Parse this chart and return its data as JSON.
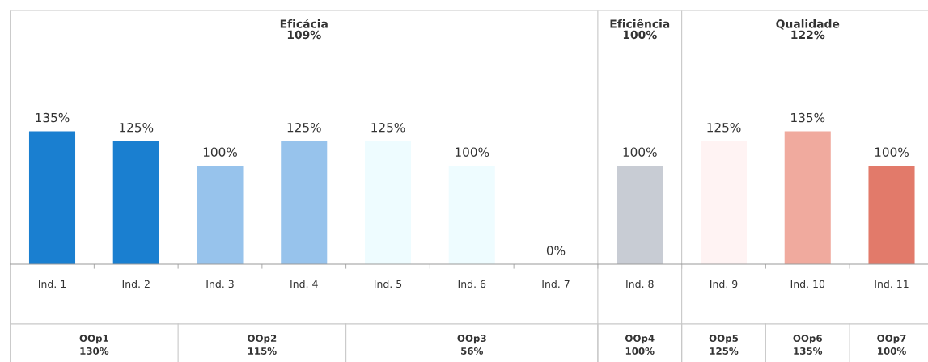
{
  "chart_data": {
    "type": "bar",
    "categories": [
      "Ind. 1",
      "Ind. 2",
      "Ind. 3",
      "Ind. 4",
      "Ind. 5",
      "Ind. 6",
      "Ind. 7",
      "Ind. 8",
      "Ind. 9",
      "Ind. 10",
      "Ind. 11"
    ],
    "values": [
      135,
      125,
      100,
      125,
      125,
      100,
      0,
      100,
      125,
      135,
      100
    ],
    "value_labels": [
      "135%",
      "125%",
      "100%",
      "125%",
      "125%",
      "100%",
      "0%",
      "100%",
      "125%",
      "135%",
      "100%"
    ],
    "colors": [
      "#1a7fd0",
      "#1a7fd0",
      "#97c3ec",
      "#97c3ec",
      "#eefcff",
      "#eefcff",
      "#eefcff",
      "#c8ccd4",
      "#fff3f3",
      "#f0aa9e",
      "#e27a6a"
    ],
    "annotations": [
      "Eficácia\n109%",
      "Eficiência\n100%",
      "Qualidade\n122%",
      "OOp1\n130%",
      "OOp2\n115%",
      "OOp3\n56%",
      "OOp4\n100%",
      "OOp5\n125%",
      "OOp6\n135%",
      "OOp7\n100%"
    ],
    "grid": false,
    "legend": false
  }
}
